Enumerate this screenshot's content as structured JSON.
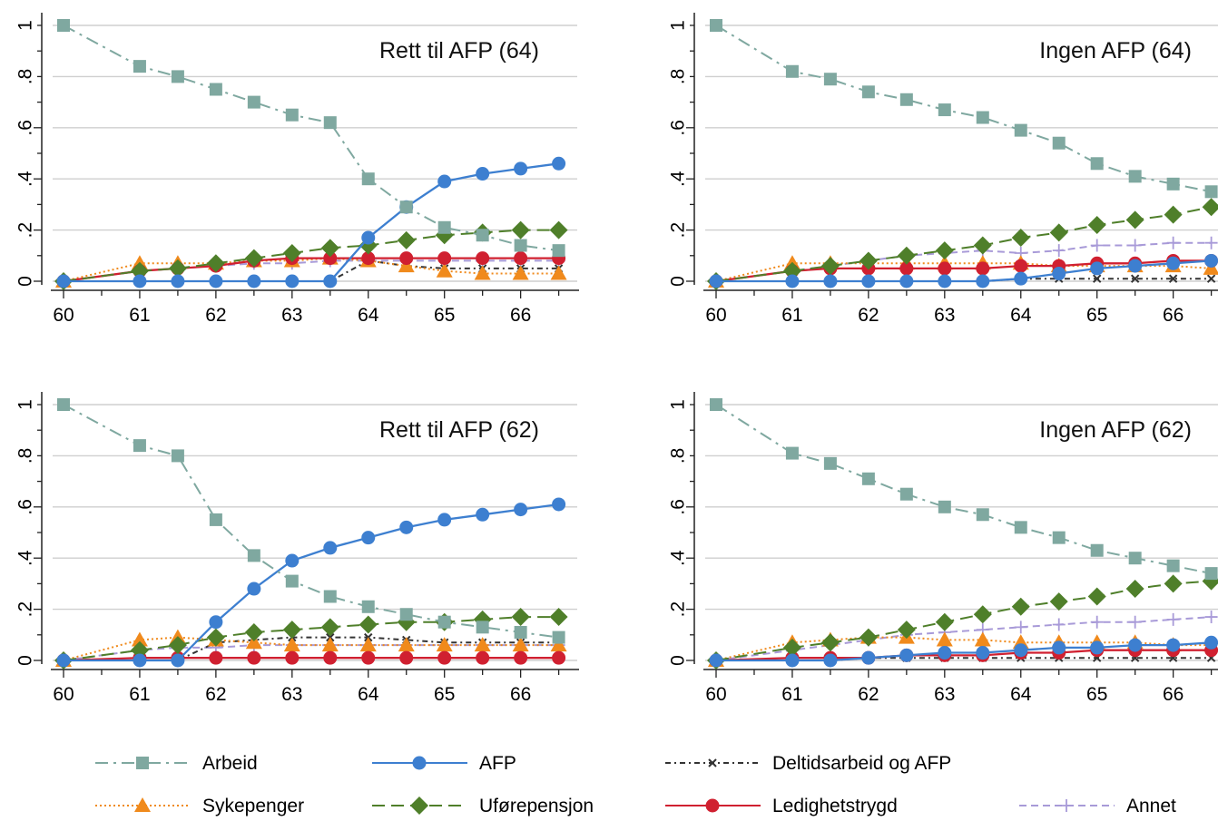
{
  "series_styles": {
    "arbeid": {
      "label": "Arbeid",
      "color": "#7fa8a0",
      "marker": "square",
      "dash": "14,6,3,6"
    },
    "afp": {
      "label": "AFP",
      "color": "#3d7fd0",
      "marker": "circle",
      "dash": ""
    },
    "deltid": {
      "label": "Deltidsarbeid og AFP",
      "color": "#333333",
      "marker": "x",
      "dash": "6,4,2,4"
    },
    "sykepenger": {
      "label": "Sykepenger",
      "color": "#f08a1c",
      "marker": "triangle",
      "dash": "2,3"
    },
    "uforepensjon": {
      "label": "Uførepensjon",
      "color": "#4f7f2a",
      "marker": "diamond",
      "dash": "14,7"
    },
    "ledighetstrygd": {
      "label": "Ledighetstrygd",
      "color": "#d02030",
      "marker": "circle",
      "dash": ""
    },
    "annet": {
      "label": "Annet",
      "color": "#a89ad8",
      "marker": "plus",
      "dash": "8,5"
    }
  },
  "chart_data": [
    {
      "type": "line",
      "title": "Rett til AFP (64)",
      "xlim": [
        60,
        66.6
      ],
      "ylim": [
        0,
        1
      ],
      "xticks": [
        "60",
        "61",
        "62",
        "63",
        "64",
        "65",
        "66"
      ],
      "yticks": [
        "0",
        ".2",
        ".4",
        ".6",
        ".8",
        "1"
      ],
      "x": [
        60,
        61,
        61.5,
        62,
        62.5,
        63,
        63.5,
        64,
        64.5,
        65,
        65.5,
        66,
        66.5
      ],
      "series": [
        {
          "key": "arbeid",
          "values": [
            1,
            0.84,
            0.8,
            0.75,
            0.7,
            0.65,
            0.62,
            0.4,
            0.29,
            0.21,
            0.18,
            0.14,
            0.12
          ]
        },
        {
          "key": "afp",
          "values": [
            0,
            0,
            0,
            0,
            0,
            0,
            0,
            0.17,
            0.29,
            0.39,
            0.42,
            0.44,
            0.46
          ]
        },
        {
          "key": "deltid",
          "values": [
            0,
            0,
            0,
            0,
            0,
            0,
            0,
            0.08,
            0.06,
            0.05,
            0.05,
            0.05,
            0.05
          ]
        },
        {
          "key": "sykepenger",
          "values": [
            0,
            0.07,
            0.07,
            0.07,
            0.08,
            0.08,
            0.09,
            0.08,
            0.06,
            0.04,
            0.03,
            0.03,
            0.03
          ]
        },
        {
          "key": "uforepensjon",
          "values": [
            0,
            0.04,
            0.05,
            0.07,
            0.09,
            0.11,
            0.13,
            0.14,
            0.16,
            0.18,
            0.19,
            0.2,
            0.2
          ]
        },
        {
          "key": "ledighetstrygd",
          "values": [
            0,
            0.04,
            0.05,
            0.06,
            0.08,
            0.09,
            0.09,
            0.09,
            0.09,
            0.09,
            0.09,
            0.09,
            0.09
          ]
        },
        {
          "key": "annet",
          "values": [
            0,
            0.04,
            0.05,
            0.06,
            0.07,
            0.07,
            0.08,
            0.08,
            0.08,
            0.08,
            0.08,
            0.08,
            0.08
          ]
        }
      ]
    },
    {
      "type": "line",
      "title": "Ingen AFP (64)",
      "xlim": [
        60,
        66.6
      ],
      "ylim": [
        0,
        1
      ],
      "xticks": [
        "60",
        "61",
        "62",
        "63",
        "64",
        "65",
        "66"
      ],
      "yticks": [
        "0",
        ".2",
        ".4",
        ".6",
        ".8",
        "1"
      ],
      "x": [
        60,
        61,
        61.5,
        62,
        62.5,
        63,
        63.5,
        64,
        64.5,
        65,
        65.5,
        66,
        66.5
      ],
      "series": [
        {
          "key": "arbeid",
          "values": [
            1,
            0.82,
            0.79,
            0.74,
            0.71,
            0.67,
            0.64,
            0.59,
            0.54,
            0.46,
            0.41,
            0.38,
            0.35
          ]
        },
        {
          "key": "afp",
          "values": [
            0,
            0,
            0,
            0,
            0,
            0,
            0,
            0.01,
            0.03,
            0.05,
            0.06,
            0.07,
            0.08
          ]
        },
        {
          "key": "deltid",
          "values": [
            0,
            0,
            0,
            0,
            0,
            0,
            0,
            0.01,
            0.01,
            0.01,
            0.01,
            0.01,
            0.01
          ]
        },
        {
          "key": "sykepenger",
          "values": [
            0,
            0.07,
            0.07,
            0.07,
            0.07,
            0.07,
            0.07,
            0.07,
            0.06,
            0.06,
            0.06,
            0.06,
            0.05
          ]
        },
        {
          "key": "uforepensjon",
          "values": [
            0,
            0.04,
            0.06,
            0.08,
            0.1,
            0.12,
            0.14,
            0.17,
            0.19,
            0.22,
            0.24,
            0.26,
            0.29
          ]
        },
        {
          "key": "ledighetstrygd",
          "values": [
            0,
            0.04,
            0.05,
            0.05,
            0.05,
            0.05,
            0.05,
            0.06,
            0.06,
            0.07,
            0.07,
            0.08,
            0.08
          ]
        },
        {
          "key": "annet",
          "values": [
            0,
            0.04,
            0.06,
            0.08,
            0.1,
            0.11,
            0.12,
            0.11,
            0.12,
            0.14,
            0.14,
            0.15,
            0.15
          ]
        }
      ]
    },
    {
      "type": "line",
      "title": "Rett til AFP (62)",
      "xlim": [
        60,
        66.6
      ],
      "ylim": [
        0,
        1
      ],
      "xticks": [
        "60",
        "61",
        "62",
        "63",
        "64",
        "65",
        "66"
      ],
      "yticks": [
        "0",
        ".2",
        ".4",
        ".6",
        ".8",
        "1"
      ],
      "x": [
        60,
        61,
        61.5,
        62,
        62.5,
        63,
        63.5,
        64,
        64.5,
        65,
        65.5,
        66,
        66.5
      ],
      "series": [
        {
          "key": "arbeid",
          "values": [
            1,
            0.84,
            0.8,
            0.55,
            0.41,
            0.31,
            0.25,
            0.21,
            0.18,
            0.15,
            0.13,
            0.11,
            0.09
          ]
        },
        {
          "key": "afp",
          "values": [
            0,
            0,
            0,
            0.15,
            0.28,
            0.39,
            0.44,
            0.48,
            0.52,
            0.55,
            0.57,
            0.59,
            0.61
          ]
        },
        {
          "key": "deltid",
          "values": [
            0,
            0,
            0,
            0.07,
            0.08,
            0.09,
            0.09,
            0.09,
            0.08,
            0.07,
            0.07,
            0.07,
            0.07
          ]
        },
        {
          "key": "sykepenger",
          "values": [
            0,
            0.08,
            0.09,
            0.08,
            0.07,
            0.06,
            0.06,
            0.06,
            0.06,
            0.06,
            0.06,
            0.06,
            0.06
          ]
        },
        {
          "key": "uforepensjon",
          "values": [
            0,
            0.04,
            0.06,
            0.09,
            0.11,
            0.12,
            0.13,
            0.14,
            0.15,
            0.15,
            0.16,
            0.17,
            0.17
          ]
        },
        {
          "key": "ledighetstrygd",
          "values": [
            0,
            0.01,
            0.01,
            0.01,
            0.01,
            0.01,
            0.01,
            0.01,
            0.01,
            0.01,
            0.01,
            0.01,
            0.01
          ]
        },
        {
          "key": "annet",
          "values": [
            0,
            0.04,
            0.05,
            0.05,
            0.06,
            0.06,
            0.06,
            0.06,
            0.06,
            0.06,
            0.06,
            0.06,
            0.06
          ]
        }
      ]
    },
    {
      "type": "line",
      "title": "Ingen AFP (62)",
      "xlim": [
        60,
        66.6
      ],
      "ylim": [
        0,
        1
      ],
      "xticks": [
        "60",
        "61",
        "62",
        "63",
        "64",
        "65",
        "66"
      ],
      "yticks": [
        "0",
        ".2",
        ".4",
        ".6",
        ".8",
        "1"
      ],
      "x": [
        60,
        61,
        61.5,
        62,
        62.5,
        63,
        63.5,
        64,
        64.5,
        65,
        65.5,
        66,
        66.5
      ],
      "series": [
        {
          "key": "arbeid",
          "values": [
            1,
            0.81,
            0.77,
            0.71,
            0.65,
            0.6,
            0.57,
            0.52,
            0.48,
            0.43,
            0.4,
            0.37,
            0.34
          ]
        },
        {
          "key": "afp",
          "values": [
            0,
            0,
            0,
            0.01,
            0.02,
            0.03,
            0.03,
            0.04,
            0.05,
            0.05,
            0.06,
            0.06,
            0.07
          ]
        },
        {
          "key": "deltid",
          "values": [
            0,
            0,
            0,
            0.01,
            0.01,
            0.01,
            0.01,
            0.01,
            0.01,
            0.01,
            0.01,
            0.01,
            0.01
          ]
        },
        {
          "key": "sykepenger",
          "values": [
            0,
            0.07,
            0.08,
            0.09,
            0.09,
            0.08,
            0.08,
            0.07,
            0.07,
            0.07,
            0.07,
            0.06,
            0.06
          ]
        },
        {
          "key": "uforepensjon",
          "values": [
            0,
            0.05,
            0.07,
            0.09,
            0.12,
            0.15,
            0.18,
            0.21,
            0.23,
            0.25,
            0.28,
            0.3,
            0.31
          ]
        },
        {
          "key": "ledighetstrygd",
          "values": [
            0,
            0.01,
            0.01,
            0.01,
            0.02,
            0.02,
            0.02,
            0.03,
            0.03,
            0.04,
            0.04,
            0.04,
            0.04
          ]
        },
        {
          "key": "annet",
          "values": [
            0,
            0.04,
            0.06,
            0.08,
            0.1,
            0.11,
            0.12,
            0.13,
            0.14,
            0.15,
            0.15,
            0.16,
            0.17
          ]
        }
      ]
    }
  ],
  "legend": {
    "rows": [
      [
        "arbeid",
        "afp",
        "deltid"
      ],
      [
        "sykepenger",
        "uforepensjon",
        "ledighetstrygd",
        "annet"
      ]
    ]
  }
}
